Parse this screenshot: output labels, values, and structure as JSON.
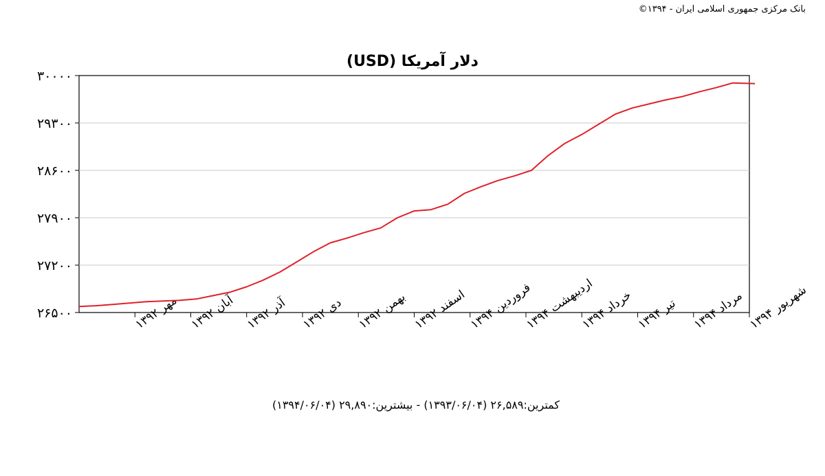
{
  "copyright": "بانک مرکزی جمهوری اسلامی ایران - ۱۳۹۴©",
  "chart_data": {
    "type": "line",
    "title": "دلار آمریکا (USD)",
    "xlabel": "",
    "ylabel": "",
    "ylim": [
      26500,
      30000
    ],
    "y_ticks": [
      26500,
      27200,
      27900,
      28600,
      29300,
      30000
    ],
    "y_tick_labels": [
      "۲۶۵۰۰",
      "۲۷۲۰۰",
      "۲۷۹۰۰",
      "۲۸۶۰۰",
      "۲۹۳۰۰",
      "۳۰۰۰۰"
    ],
    "x_ticks": [
      "مهر ۱۳۹۲",
      "آبان ۱۳۹۲",
      "آذر ۱۳۹۲",
      "دی ۱۳۹۲",
      "بهمن ۱۳۹۲",
      "اسفند ۱۳۹۲",
      "فروردین ۱۳۹۴",
      "اردیبهشت ۱۳۹۴",
      "خرداد ۱۳۹۴",
      "تیر ۱۳۹۴",
      "مرداد ۱۳۹۴",
      "شهریور ۱۳۹۴"
    ],
    "grid": true,
    "series_color": "#e0202a",
    "series": [
      {
        "x": [
          0,
          0.3,
          0.6,
          0.9,
          1.2,
          1.5,
          1.8,
          2.1,
          2.4,
          2.7,
          3.0,
          3.3,
          3.6,
          3.9,
          4.2,
          4.5,
          4.8,
          5.1,
          5.4,
          5.7,
          6.0,
          6.3,
          6.6,
          6.9,
          7.2,
          7.5,
          7.8,
          8.1,
          8.4,
          8.7,
          9.0,
          9.3,
          9.6,
          9.9,
          10.2,
          10.5,
          10.8,
          11.1,
          11.4,
          11.7,
          12.1
        ],
        "values": [
          26589,
          26600,
          26620,
          26640,
          26660,
          26670,
          26680,
          26700,
          26750,
          26800,
          26880,
          26980,
          27100,
          27250,
          27400,
          27530,
          27600,
          27680,
          27750,
          27900,
          28000,
          28020,
          28100,
          28260,
          28360,
          28450,
          28520,
          28600,
          28820,
          29000,
          29130,
          29280,
          29430,
          29520,
          29580,
          29640,
          29690,
          29760,
          29820,
          29890,
          29880
        ]
      }
    ]
  },
  "footer": "کمترین:۲۶,۵۸۹ (۱۳۹۳/۰۶/۰۴) - بیشترین:۲۹,۸۹۰ (۱۳۹۴/۰۶/۰۴)"
}
